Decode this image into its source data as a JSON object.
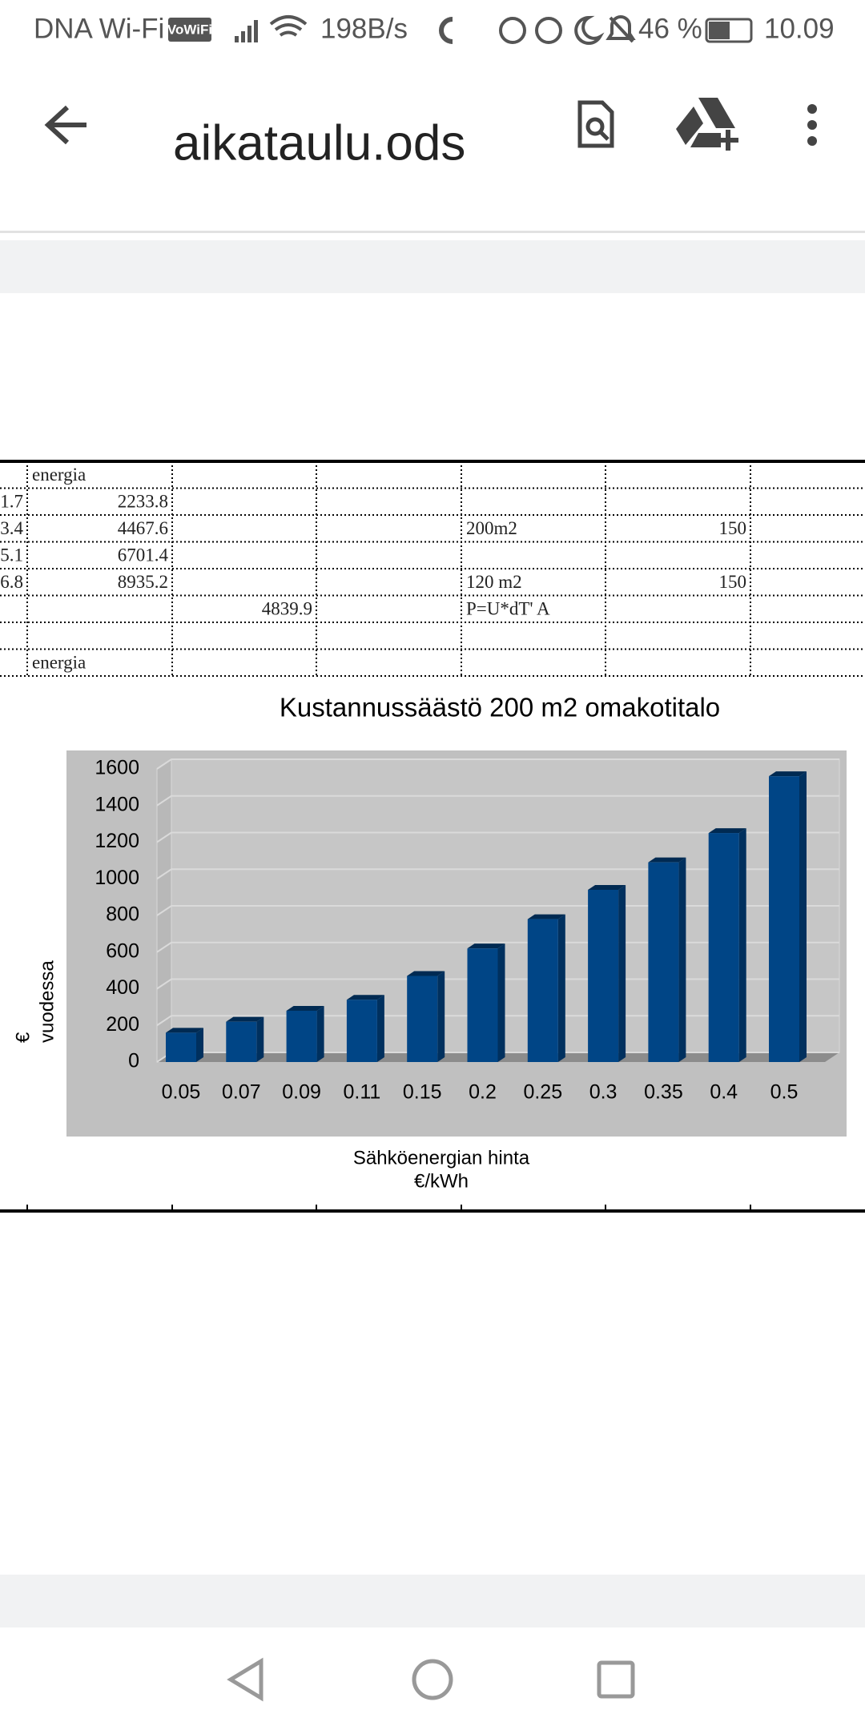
{
  "status_bar": {
    "carrier": "DNA Wi-Fi",
    "vowifi": "VoWiFi",
    "speed": "198B/s",
    "battery": "46 %",
    "time": "10.09"
  },
  "app_bar": {
    "title": "aikataulu.ods"
  },
  "sheet": {
    "rows": [
      [
        null,
        "energia",
        null,
        null,
        null,
        null,
        null
      ],
      [
        1.7,
        2233.8,
        null,
        null,
        null,
        null,
        null
      ],
      [
        3.4,
        4467.6,
        null,
        null,
        "200m2",
        150,
        null
      ],
      [
        5.1,
        6701.4,
        null,
        null,
        null,
        null,
        null
      ],
      [
        6.8,
        8935.2,
        null,
        null,
        "120 m2",
        150,
        null
      ],
      [
        null,
        null,
        4839.9,
        null,
        "P=U*dT' A",
        null,
        null
      ],
      [
        null,
        null,
        null,
        null,
        null,
        null,
        null
      ],
      [
        null,
        "energia",
        null,
        null,
        null,
        null,
        null
      ]
    ]
  },
  "chart_data": {
    "type": "bar",
    "title": "Kustannussäästö 200 m2 omakotitalo",
    "y_label": [
      "€",
      "vuodessa"
    ],
    "x_label": [
      "Sähköenergian hinta",
      "€/kWh"
    ],
    "categories": [
      "0.05",
      "0.07",
      "0.09",
      "0.11",
      "0.15",
      "0.2",
      "0.25",
      "0.3",
      "0.35",
      "0.4",
      "0.5"
    ],
    "values": [
      160,
      220,
      280,
      340,
      470,
      620,
      780,
      940,
      1090,
      1250,
      1560
    ],
    "color": "#004586",
    "ylim": [
      0,
      1600
    ],
    "yticks": [
      0,
      200,
      400,
      600,
      800,
      1000,
      1200,
      1400,
      1600
    ],
    "grid": true
  }
}
